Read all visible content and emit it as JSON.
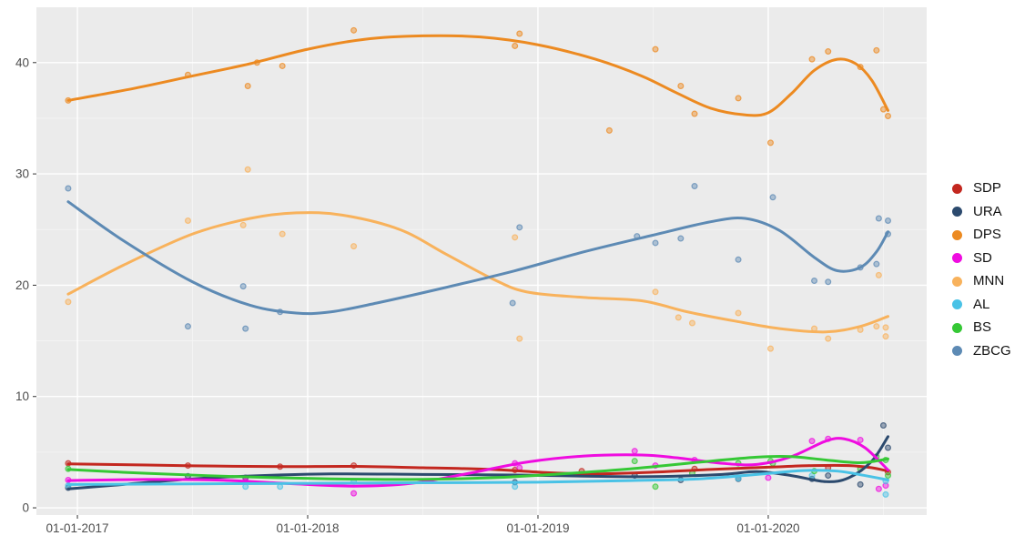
{
  "chart_data": {
    "type": "scatter",
    "subtype": "scatter points with loess smooth lines (ggplot2 style poll tracker)",
    "title": "",
    "xlabel": "",
    "ylabel": "",
    "x_unit": "date (decimal years)",
    "x_tick_labels": [
      "01-01-2017",
      "01-01-2018",
      "01-01-2019",
      "01-01-2020"
    ],
    "x_tick_values": [
      2017,
      2018,
      2019,
      2020
    ],
    "x_minor_values": [
      2017.5,
      2018.5,
      2019.5,
      2020.5
    ],
    "x_domain": [
      2016.822,
      2020.688
    ],
    "y_tick_labels": [
      "0",
      "10",
      "20",
      "30",
      "40"
    ],
    "y_tick_values": [
      0,
      10,
      20,
      30,
      40
    ],
    "y_minor_values": [
      5,
      15,
      25,
      35
    ],
    "y_domain": [
      -0.65,
      44.97
    ],
    "grid": true,
    "legend_position": "right",
    "series": [
      {
        "name": "SDP",
        "color": "#c3271f",
        "points": [
          [
            2016.96,
            4.0
          ],
          [
            2017.48,
            3.8
          ],
          [
            2017.88,
            3.7
          ],
          [
            2018.2,
            3.8
          ],
          [
            2018.9,
            3.4
          ],
          [
            2019.19,
            3.3
          ],
          [
            2019.68,
            3.5
          ],
          [
            2020.26,
            3.6
          ],
          [
            2020.52,
            3.2
          ]
        ],
        "smooth": [
          [
            2016.96,
            3.95
          ],
          [
            2017.3,
            3.85
          ],
          [
            2017.6,
            3.75
          ],
          [
            2017.9,
            3.7
          ],
          [
            2018.2,
            3.72
          ],
          [
            2018.5,
            3.6
          ],
          [
            2018.8,
            3.45
          ],
          [
            2019.05,
            3.15
          ],
          [
            2019.25,
            3.05
          ],
          [
            2019.5,
            3.2
          ],
          [
            2019.75,
            3.45
          ],
          [
            2020.0,
            3.65
          ],
          [
            2020.2,
            3.8
          ],
          [
            2020.35,
            3.8
          ],
          [
            2020.45,
            3.6
          ],
          [
            2020.52,
            3.3
          ]
        ]
      },
      {
        "name": "URA",
        "color": "#2c4a6e",
        "points": [
          [
            2016.96,
            1.8
          ],
          [
            2017.48,
            2.85
          ],
          [
            2017.73,
            2.7
          ],
          [
            2018.9,
            2.3
          ],
          [
            2019.42,
            2.9
          ],
          [
            2019.62,
            2.5
          ],
          [
            2019.87,
            2.6
          ],
          [
            2020.19,
            2.6
          ],
          [
            2020.26,
            2.9
          ],
          [
            2020.4,
            2.1
          ],
          [
            2020.5,
            7.4
          ],
          [
            2020.52,
            5.4
          ]
        ],
        "smooth": [
          [
            2016.96,
            1.7
          ],
          [
            2017.2,
            2.1
          ],
          [
            2017.5,
            2.6
          ],
          [
            2017.8,
            2.9
          ],
          [
            2018.1,
            3.05
          ],
          [
            2018.5,
            3.0
          ],
          [
            2018.9,
            2.95
          ],
          [
            2019.2,
            2.85
          ],
          [
            2019.5,
            2.8
          ],
          [
            2019.8,
            3.0
          ],
          [
            2019.95,
            3.25
          ],
          [
            2020.1,
            2.9
          ],
          [
            2020.25,
            2.35
          ],
          [
            2020.35,
            2.7
          ],
          [
            2020.45,
            4.2
          ],
          [
            2020.52,
            6.4
          ]
        ]
      },
      {
        "name": "DPS",
        "color": "#ec8a21",
        "points": [
          [
            2016.96,
            36.6
          ],
          [
            2017.48,
            38.9
          ],
          [
            2017.74,
            37.9
          ],
          [
            2017.78,
            40.0
          ],
          [
            2017.89,
            39.7
          ],
          [
            2018.2,
            42.9
          ],
          [
            2018.9,
            41.5
          ],
          [
            2018.92,
            42.6
          ],
          [
            2019.31,
            33.9
          ],
          [
            2019.51,
            41.2
          ],
          [
            2019.62,
            37.9
          ],
          [
            2019.68,
            35.4
          ],
          [
            2019.87,
            36.8
          ],
          [
            2020.01,
            32.8
          ],
          [
            2020.19,
            40.3
          ],
          [
            2020.26,
            41.0
          ],
          [
            2020.4,
            39.6
          ],
          [
            2020.47,
            41.1
          ],
          [
            2020.5,
            35.8
          ],
          [
            2020.52,
            35.2
          ]
        ],
        "smooth": [
          [
            2016.96,
            36.6
          ],
          [
            2017.25,
            37.7
          ],
          [
            2017.5,
            38.8
          ],
          [
            2017.75,
            39.9
          ],
          [
            2018.0,
            41.2
          ],
          [
            2018.25,
            42.1
          ],
          [
            2018.5,
            42.4
          ],
          [
            2018.75,
            42.3
          ],
          [
            2019.0,
            41.6
          ],
          [
            2019.25,
            40.3
          ],
          [
            2019.45,
            38.8
          ],
          [
            2019.6,
            37.3
          ],
          [
            2019.75,
            35.9
          ],
          [
            2019.9,
            35.3
          ],
          [
            2020.0,
            35.5
          ],
          [
            2020.1,
            37.2
          ],
          [
            2020.2,
            39.3
          ],
          [
            2020.3,
            40.3
          ],
          [
            2020.38,
            39.9
          ],
          [
            2020.45,
            38.4
          ],
          [
            2020.52,
            35.7
          ]
        ]
      },
      {
        "name": "SD",
        "color": "#ef0ce0",
        "points": [
          [
            2016.96,
            2.5
          ],
          [
            2017.73,
            2.4
          ],
          [
            2018.2,
            1.3
          ],
          [
            2018.9,
            4.0
          ],
          [
            2018.92,
            3.6
          ],
          [
            2019.42,
            5.1
          ],
          [
            2019.51,
            3.8
          ],
          [
            2019.68,
            4.3
          ],
          [
            2020.0,
            2.7
          ],
          [
            2020.19,
            6.0
          ],
          [
            2020.26,
            6.2
          ],
          [
            2020.4,
            6.1
          ],
          [
            2020.48,
            1.7
          ],
          [
            2020.51,
            2.0
          ]
        ],
        "smooth": [
          [
            2016.96,
            2.45
          ],
          [
            2017.3,
            2.55
          ],
          [
            2017.6,
            2.5
          ],
          [
            2017.9,
            2.2
          ],
          [
            2018.2,
            1.95
          ],
          [
            2018.45,
            2.2
          ],
          [
            2018.7,
            3.1
          ],
          [
            2018.95,
            4.1
          ],
          [
            2019.2,
            4.65
          ],
          [
            2019.45,
            4.75
          ],
          [
            2019.6,
            4.5
          ],
          [
            2019.8,
            4.0
          ],
          [
            2019.95,
            3.9
          ],
          [
            2020.1,
            4.6
          ],
          [
            2020.25,
            6.0
          ],
          [
            2020.33,
            6.2
          ],
          [
            2020.42,
            5.4
          ],
          [
            2020.52,
            3.4
          ]
        ]
      },
      {
        "name": "MNN",
        "color": "#f8b25c",
        "points": [
          [
            2016.96,
            18.5
          ],
          [
            2017.48,
            25.8
          ],
          [
            2017.72,
            25.4
          ],
          [
            2017.74,
            30.4
          ],
          [
            2017.89,
            24.6
          ],
          [
            2018.2,
            23.5
          ],
          [
            2018.9,
            24.3
          ],
          [
            2018.92,
            15.2
          ],
          [
            2019.51,
            19.4
          ],
          [
            2019.61,
            17.1
          ],
          [
            2019.67,
            16.6
          ],
          [
            2019.87,
            17.5
          ],
          [
            2020.01,
            14.3
          ],
          [
            2020.2,
            16.1
          ],
          [
            2020.26,
            15.2
          ],
          [
            2020.4,
            16.0
          ],
          [
            2020.47,
            16.3
          ],
          [
            2020.48,
            20.9
          ],
          [
            2020.51,
            16.2
          ],
          [
            2020.51,
            15.4
          ]
        ],
        "smooth": [
          [
            2016.96,
            19.2
          ],
          [
            2017.2,
            21.8
          ],
          [
            2017.5,
            24.6
          ],
          [
            2017.75,
            26.0
          ],
          [
            2017.95,
            26.5
          ],
          [
            2018.15,
            26.3
          ],
          [
            2018.4,
            25.0
          ],
          [
            2018.6,
            22.8
          ],
          [
            2018.8,
            20.6
          ],
          [
            2018.95,
            19.4
          ],
          [
            2019.2,
            18.9
          ],
          [
            2019.45,
            18.6
          ],
          [
            2019.65,
            17.6
          ],
          [
            2019.85,
            16.8
          ],
          [
            2020.05,
            16.1
          ],
          [
            2020.25,
            15.8
          ],
          [
            2020.4,
            16.3
          ],
          [
            2020.52,
            17.2
          ]
        ]
      },
      {
        "name": "AL",
        "color": "#49c2e6",
        "points": [
          [
            2016.96,
            2.0
          ],
          [
            2017.73,
            1.9
          ],
          [
            2017.88,
            1.9
          ],
          [
            2018.2,
            2.35
          ],
          [
            2018.9,
            1.9
          ],
          [
            2019.87,
            2.65
          ],
          [
            2020.19,
            2.9
          ],
          [
            2020.51,
            2.4
          ],
          [
            2020.51,
            1.2
          ]
        ],
        "smooth": [
          [
            2016.96,
            2.1
          ],
          [
            2017.5,
            2.15
          ],
          [
            2018.0,
            2.2
          ],
          [
            2018.5,
            2.25
          ],
          [
            2019.0,
            2.3
          ],
          [
            2019.4,
            2.45
          ],
          [
            2019.7,
            2.6
          ],
          [
            2019.95,
            3.0
          ],
          [
            2020.15,
            3.35
          ],
          [
            2020.3,
            3.3
          ],
          [
            2020.42,
            2.9
          ],
          [
            2020.52,
            2.5
          ]
        ]
      },
      {
        "name": "BS",
        "color": "#35c835",
        "points": [
          [
            2016.96,
            3.5
          ],
          [
            2019.42,
            4.2
          ],
          [
            2019.51,
            1.9
          ],
          [
            2019.67,
            3.1
          ],
          [
            2019.87,
            4.0
          ],
          [
            2020.01,
            4.2
          ],
          [
            2020.02,
            4.0
          ],
          [
            2020.2,
            3.3
          ],
          [
            2020.4,
            3.5
          ],
          [
            2020.47,
            4.6
          ],
          [
            2020.51,
            4.3
          ],
          [
            2020.52,
            2.9
          ]
        ],
        "smooth": [
          [
            2016.96,
            3.45
          ],
          [
            2017.3,
            3.1
          ],
          [
            2017.7,
            2.8
          ],
          [
            2018.1,
            2.6
          ],
          [
            2018.45,
            2.55
          ],
          [
            2018.8,
            2.7
          ],
          [
            2019.1,
            3.05
          ],
          [
            2019.4,
            3.5
          ],
          [
            2019.7,
            4.1
          ],
          [
            2019.95,
            4.55
          ],
          [
            2020.1,
            4.6
          ],
          [
            2020.25,
            4.3
          ],
          [
            2020.4,
            4.05
          ],
          [
            2020.52,
            4.4
          ]
        ]
      },
      {
        "name": "ZBCG",
        "color": "#5d8ab4",
        "points": [
          [
            2016.96,
            28.7
          ],
          [
            2017.48,
            16.3
          ],
          [
            2017.72,
            19.9
          ],
          [
            2017.73,
            16.1
          ],
          [
            2017.88,
            17.6
          ],
          [
            2018.89,
            18.4
          ],
          [
            2018.92,
            25.2
          ],
          [
            2019.43,
            24.4
          ],
          [
            2019.51,
            23.8
          ],
          [
            2019.62,
            24.2
          ],
          [
            2019.68,
            28.9
          ],
          [
            2019.87,
            22.3
          ],
          [
            2020.02,
            27.9
          ],
          [
            2020.2,
            20.4
          ],
          [
            2020.26,
            20.3
          ],
          [
            2020.4,
            21.6
          ],
          [
            2020.47,
            21.9
          ],
          [
            2020.48,
            26.0
          ],
          [
            2020.52,
            25.8
          ],
          [
            2020.52,
            24.6
          ]
        ],
        "smooth": [
          [
            2016.96,
            27.5
          ],
          [
            2017.2,
            24.0
          ],
          [
            2017.5,
            20.3
          ],
          [
            2017.75,
            18.2
          ],
          [
            2017.95,
            17.5
          ],
          [
            2018.1,
            17.6
          ],
          [
            2018.3,
            18.4
          ],
          [
            2018.6,
            19.8
          ],
          [
            2018.9,
            21.3
          ],
          [
            2019.2,
            23.0
          ],
          [
            2019.5,
            24.5
          ],
          [
            2019.75,
            25.7
          ],
          [
            2019.9,
            26.0
          ],
          [
            2020.05,
            24.9
          ],
          [
            2020.2,
            22.5
          ],
          [
            2020.3,
            21.3
          ],
          [
            2020.4,
            21.6
          ],
          [
            2020.47,
            23.0
          ],
          [
            2020.52,
            24.8
          ]
        ]
      }
    ]
  },
  "legend": {
    "items": [
      {
        "label": "SDP",
        "color": "#c3271f"
      },
      {
        "label": "URA",
        "color": "#2c4a6e"
      },
      {
        "label": "DPS",
        "color": "#ec8a21"
      },
      {
        "label": "SD",
        "color": "#ef0ce0"
      },
      {
        "label": "MNN",
        "color": "#f8b25c"
      },
      {
        "label": "AL",
        "color": "#49c2e6"
      },
      {
        "label": "BS",
        "color": "#35c835"
      },
      {
        "label": "ZBCG",
        "color": "#5d8ab4"
      }
    ]
  },
  "style": {
    "panel_bg": "#ebebeb",
    "outer_bg": "#ffffff",
    "grid_major": "#ffffff",
    "grid_minor": "#f5f5f5",
    "axis_text_color": "#4d4d4d",
    "tick_mark_color": "#333333",
    "legend_text_color": "#111111"
  }
}
